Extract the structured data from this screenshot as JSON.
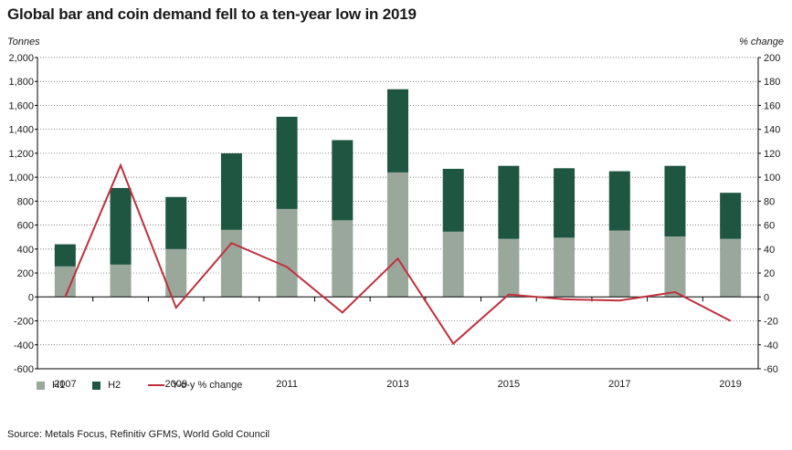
{
  "title": "Global bar and coin demand fell to a ten-year low in 2019",
  "unit_left": "Tonnes",
  "unit_right": "% change",
  "source": "Source: Metals Focus, Refinitiv GFMS, World Gold Council",
  "colors": {
    "h1": "#9aa89c",
    "h2": "#1e5641",
    "line": "#c0303d",
    "grid": "#555555",
    "axis": "#000000"
  },
  "chart_data": {
    "type": "bar",
    "stacked": true,
    "categories": [
      "2007",
      "2008",
      "2009",
      "2010",
      "2011",
      "2012",
      "2013",
      "2014",
      "2015",
      "2016",
      "2017",
      "2018",
      "2019"
    ],
    "x_tick_labels": [
      "2007",
      "",
      "2009",
      "",
      "2011",
      "",
      "2013",
      "",
      "2015",
      "",
      "2017",
      "",
      "2019"
    ],
    "series": [
      {
        "name": "H1",
        "values": [
          255,
          270,
          400,
          560,
          735,
          640,
          1040,
          545,
          485,
          495,
          555,
          505,
          485
        ]
      },
      {
        "name": "H2",
        "values": [
          185,
          640,
          435,
          640,
          770,
          670,
          695,
          525,
          610,
          580,
          495,
          590,
          385
        ]
      }
    ],
    "line_series": {
      "name": "Y-o-y % change",
      "axis": "right",
      "values": [
        0,
        110,
        -9,
        45,
        25,
        -13,
        32,
        -39,
        2,
        -2,
        -3,
        4,
        -20
      ]
    },
    "ylim": [
      -600,
      2000
    ],
    "y_ticks": [
      "2,000",
      "1,800",
      "1,600",
      "1,400",
      "1,200",
      "1,000",
      "800",
      "600",
      "400",
      "200",
      "0",
      "-200",
      "-400",
      "-600"
    ],
    "y2lim": [
      -60,
      200
    ],
    "y2_ticks": [
      "200",
      "180",
      "160",
      "140",
      "120",
      "100",
      "80",
      "60",
      "40",
      "20",
      "0",
      "-20",
      "-40",
      "-60"
    ],
    "grid": true,
    "legend_position": "bottom-left"
  }
}
